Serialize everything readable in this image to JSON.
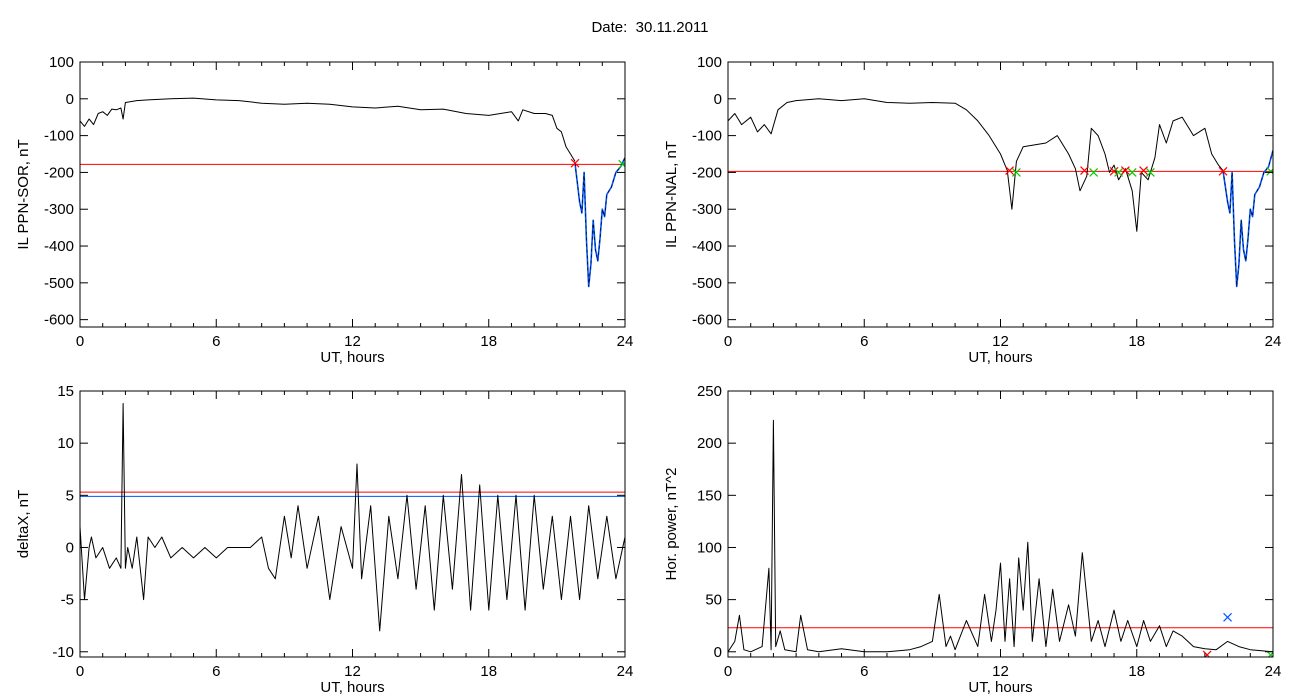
{
  "title": "Date:  30.11.2011",
  "chart_data": [
    {
      "type": "line",
      "ylabel": "IL PPN-SOR, nT",
      "xlabel": "UT, hours",
      "xlim": [
        0,
        24
      ],
      "ylim": [
        -620,
        100
      ],
      "xticks": [
        0,
        6,
        12,
        18,
        24
      ],
      "yticks": [
        -600,
        -500,
        -400,
        -300,
        -200,
        -100,
        0,
        100
      ],
      "thresholds": [
        {
          "value": -178,
          "color": "#ff0000"
        }
      ],
      "series": [
        {
          "color": "#000000",
          "x": [
            0,
            0.2,
            0.4,
            0.6,
            0.8,
            1.0,
            1.2,
            1.4,
            1.6,
            1.8,
            1.9,
            2.0,
            2.2,
            2.5,
            3,
            4,
            5,
            6,
            7,
            8,
            9,
            10,
            11,
            12,
            13,
            14,
            15,
            16,
            17,
            18,
            19,
            19.3,
            19.5,
            20,
            20.5,
            20.8,
            21.0,
            21.2,
            21.4,
            21.6,
            21.8
          ],
          "y": [
            -60,
            -75,
            -55,
            -70,
            -40,
            -35,
            -45,
            -28,
            -30,
            -25,
            -55,
            -10,
            -8,
            -5,
            -3,
            0,
            2,
            -3,
            -5,
            -12,
            -15,
            -12,
            -15,
            -22,
            -25,
            -20,
            -30,
            -28,
            -40,
            -45,
            -35,
            -60,
            -30,
            -40,
            -40,
            -45,
            -80,
            -90,
            -130,
            -150,
            -170
          ]
        }
      ],
      "segments": [
        {
          "color": "#0055ff",
          "x": [
            21.8,
            22.0,
            22.1,
            22.2,
            22.3,
            22.4,
            22.5,
            22.6,
            22.7,
            22.8,
            22.9,
            23.0,
            23.1,
            23.2,
            23.4,
            23.6,
            23.8,
            24.0
          ],
          "y": [
            -175,
            -280,
            -310,
            -200,
            -380,
            -510,
            -450,
            -330,
            -410,
            -440,
            -380,
            -300,
            -320,
            -260,
            -240,
            -200,
            -185,
            -160
          ]
        }
      ],
      "markers": [
        {
          "x": 21.8,
          "y": -175,
          "color": "#ff0000"
        },
        {
          "x": 23.9,
          "y": -178,
          "color": "#00cc00"
        }
      ]
    },
    {
      "type": "line",
      "ylabel": "IL PPN-NAL, nT",
      "xlabel": "UT, hours",
      "xlim": [
        0,
        24
      ],
      "ylim": [
        -620,
        100
      ],
      "xticks": [
        0,
        6,
        12,
        18,
        24
      ],
      "yticks": [
        -600,
        -500,
        -400,
        -300,
        -200,
        -100,
        0,
        100
      ],
      "thresholds": [
        {
          "value": -197,
          "color": "#ff0000"
        }
      ],
      "series": [
        {
          "color": "#000000",
          "x": [
            0,
            0.3,
            0.6,
            1.0,
            1.3,
            1.6,
            1.9,
            2.2,
            2.6,
            3,
            4,
            5,
            6,
            7,
            8,
            9,
            10,
            10.5,
            11,
            11.5,
            12,
            12.3,
            12.5,
            12.7,
            13,
            14,
            14.5,
            15,
            15.3,
            15.5,
            15.8,
            16.0,
            16.3,
            16.6,
            16.8,
            17.0,
            17.2,
            17.5,
            17.8,
            18.0,
            18.2,
            18.5,
            18.8,
            19.0,
            19.3,
            19.6,
            20,
            20.5,
            21,
            21.3,
            21.6,
            21.8
          ],
          "y": [
            -60,
            -40,
            -70,
            -50,
            -90,
            -70,
            -95,
            -30,
            -10,
            -5,
            0,
            -5,
            0,
            -10,
            -12,
            -10,
            -12,
            -30,
            -60,
            -100,
            -150,
            -195,
            -300,
            -170,
            -130,
            -120,
            -100,
            -150,
            -190,
            -250,
            -210,
            -80,
            -100,
            -150,
            -200,
            -180,
            -220,
            -190,
            -250,
            -360,
            -200,
            -220,
            -160,
            -70,
            -120,
            -60,
            -50,
            -100,
            -80,
            -150,
            -180,
            -195
          ]
        }
      ],
      "segments": [
        {
          "color": "#0055ff",
          "x": [
            21.8,
            22.0,
            22.1,
            22.2,
            22.3,
            22.4,
            22.5,
            22.6,
            22.7,
            22.8,
            22.9,
            23.0,
            23.1,
            23.2,
            23.4,
            23.6,
            23.8,
            24.0
          ],
          "y": [
            -195,
            -280,
            -310,
            -200,
            -380,
            -510,
            -450,
            -330,
            -410,
            -440,
            -380,
            -300,
            -320,
            -260,
            -240,
            -200,
            -185,
            -140
          ]
        }
      ],
      "markers": [
        {
          "x": 12.4,
          "y": -195,
          "color": "#ff0000"
        },
        {
          "x": 12.7,
          "y": -200,
          "color": "#00cc00"
        },
        {
          "x": 15.7,
          "y": -195,
          "color": "#ff0000"
        },
        {
          "x": 16.1,
          "y": -200,
          "color": "#00cc00"
        },
        {
          "x": 17.0,
          "y": -197,
          "color": "#ff0000"
        },
        {
          "x": 17.2,
          "y": -200,
          "color": "#00cc00"
        },
        {
          "x": 17.5,
          "y": -195,
          "color": "#ff0000"
        },
        {
          "x": 17.8,
          "y": -200,
          "color": "#00cc00"
        },
        {
          "x": 18.3,
          "y": -195,
          "color": "#ff0000"
        },
        {
          "x": 18.6,
          "y": -200,
          "color": "#00cc00"
        },
        {
          "x": 21.8,
          "y": -197,
          "color": "#ff0000"
        },
        {
          "x": 23.9,
          "y": -197,
          "color": "#00cc00"
        }
      ]
    },
    {
      "type": "line",
      "ylabel": "deltaX, nT",
      "xlabel": "UT, hours",
      "xlim": [
        0,
        24
      ],
      "ylim": [
        -10.5,
        15
      ],
      "xticks": [
        0,
        6,
        12,
        18,
        24
      ],
      "yticks": [
        -10,
        -5,
        0,
        5,
        10,
        15
      ],
      "thresholds": [
        {
          "value": 5.3,
          "color": "#ff0000"
        },
        {
          "value": 4.9,
          "color": "#0055ff"
        }
      ],
      "series": [
        {
          "color": "#000000",
          "x": [
            0,
            0.2,
            0.4,
            0.5,
            0.7,
            1.0,
            1.3,
            1.6,
            1.8,
            1.9,
            2.0,
            2.1,
            2.3,
            2.5,
            2.8,
            3.0,
            3.3,
            3.6,
            4,
            4.5,
            5,
            5.5,
            6,
            6.5,
            7,
            7.5,
            8,
            8.3,
            8.6,
            9.0,
            9.3,
            9.6,
            10,
            10.5,
            11,
            11.5,
            12.0,
            12.2,
            12.4,
            12.8,
            13.2,
            13.6,
            14.0,
            14.4,
            14.8,
            15.2,
            15.6,
            16.0,
            16.4,
            16.8,
            17.2,
            17.6,
            18.0,
            18.4,
            18.8,
            19.2,
            19.6,
            20.0,
            20.4,
            20.8,
            21.2,
            21.6,
            22.0,
            22.4,
            22.8,
            23.2,
            23.6,
            24.0
          ],
          "y": [
            2,
            -5,
            0,
            1,
            -1,
            0,
            -2,
            -1,
            -2,
            13.8,
            -2,
            0,
            -2,
            1,
            -5,
            1,
            0,
            1,
            -1,
            0,
            -1,
            0,
            -1,
            0,
            0,
            0,
            1,
            -2,
            -3,
            3,
            -1,
            4,
            -2,
            3,
            -5,
            2,
            -2,
            8,
            -3,
            4,
            -8,
            3,
            -3,
            5,
            -4,
            4,
            -6,
            5,
            -4,
            7,
            -6,
            6,
            -6,
            5,
            -5,
            5,
            -6,
            5,
            -4,
            3,
            -5,
            3,
            -5,
            4,
            -3,
            3,
            -3,
            1
          ]
        }
      ],
      "segments": [],
      "markers": []
    },
    {
      "type": "line",
      "ylabel": "Hor. power, nT^2",
      "xlabel": "UT, hours",
      "xlim": [
        0,
        24
      ],
      "ylim": [
        -5,
        250
      ],
      "xticks": [
        0,
        6,
        12,
        18,
        24
      ],
      "yticks": [
        0,
        50,
        100,
        150,
        200,
        250
      ],
      "thresholds": [
        {
          "value": 23,
          "color": "#ff0000"
        }
      ],
      "series": [
        {
          "color": "#000000",
          "x": [
            0,
            0.3,
            0.5,
            0.7,
            1.0,
            1.5,
            1.8,
            1.9,
            2.0,
            2.1,
            2.3,
            2.5,
            3.0,
            3.2,
            3.5,
            4,
            5,
            6,
            7,
            8,
            8.5,
            9.0,
            9.3,
            9.6,
            9.8,
            10.0,
            10.5,
            11,
            11.3,
            11.6,
            11.8,
            12.0,
            12.2,
            12.4,
            12.6,
            12.8,
            13.0,
            13.2,
            13.4,
            13.7,
            14.0,
            14.3,
            14.6,
            15.0,
            15.3,
            15.6,
            16.0,
            16.3,
            16.6,
            17.0,
            17.3,
            17.6,
            18.0,
            18.3,
            18.6,
            19.0,
            19.3,
            19.6,
            20.0,
            20.5,
            21,
            21.5,
            22.0,
            22.5,
            23,
            23.5,
            24.0
          ],
          "y": [
            0,
            10,
            35,
            2,
            0,
            5,
            80,
            2,
            222,
            5,
            20,
            2,
            0,
            35,
            2,
            0,
            3,
            0,
            0,
            2,
            5,
            10,
            55,
            5,
            15,
            2,
            30,
            5,
            55,
            10,
            40,
            85,
            10,
            70,
            5,
            90,
            40,
            105,
            10,
            70,
            5,
            60,
            10,
            45,
            15,
            95,
            10,
            30,
            5,
            40,
            10,
            30,
            5,
            30,
            10,
            25,
            5,
            20,
            15,
            5,
            3,
            2,
            10,
            5,
            2,
            1,
            0
          ]
        }
      ],
      "segments": [],
      "markers": [
        {
          "x": 22.0,
          "y": 33,
          "color": "#0055ff"
        },
        {
          "x": 21.1,
          "y": -3,
          "color": "#ff0000"
        },
        {
          "x": 23.9,
          "y": -3,
          "color": "#00cc00"
        }
      ]
    }
  ]
}
